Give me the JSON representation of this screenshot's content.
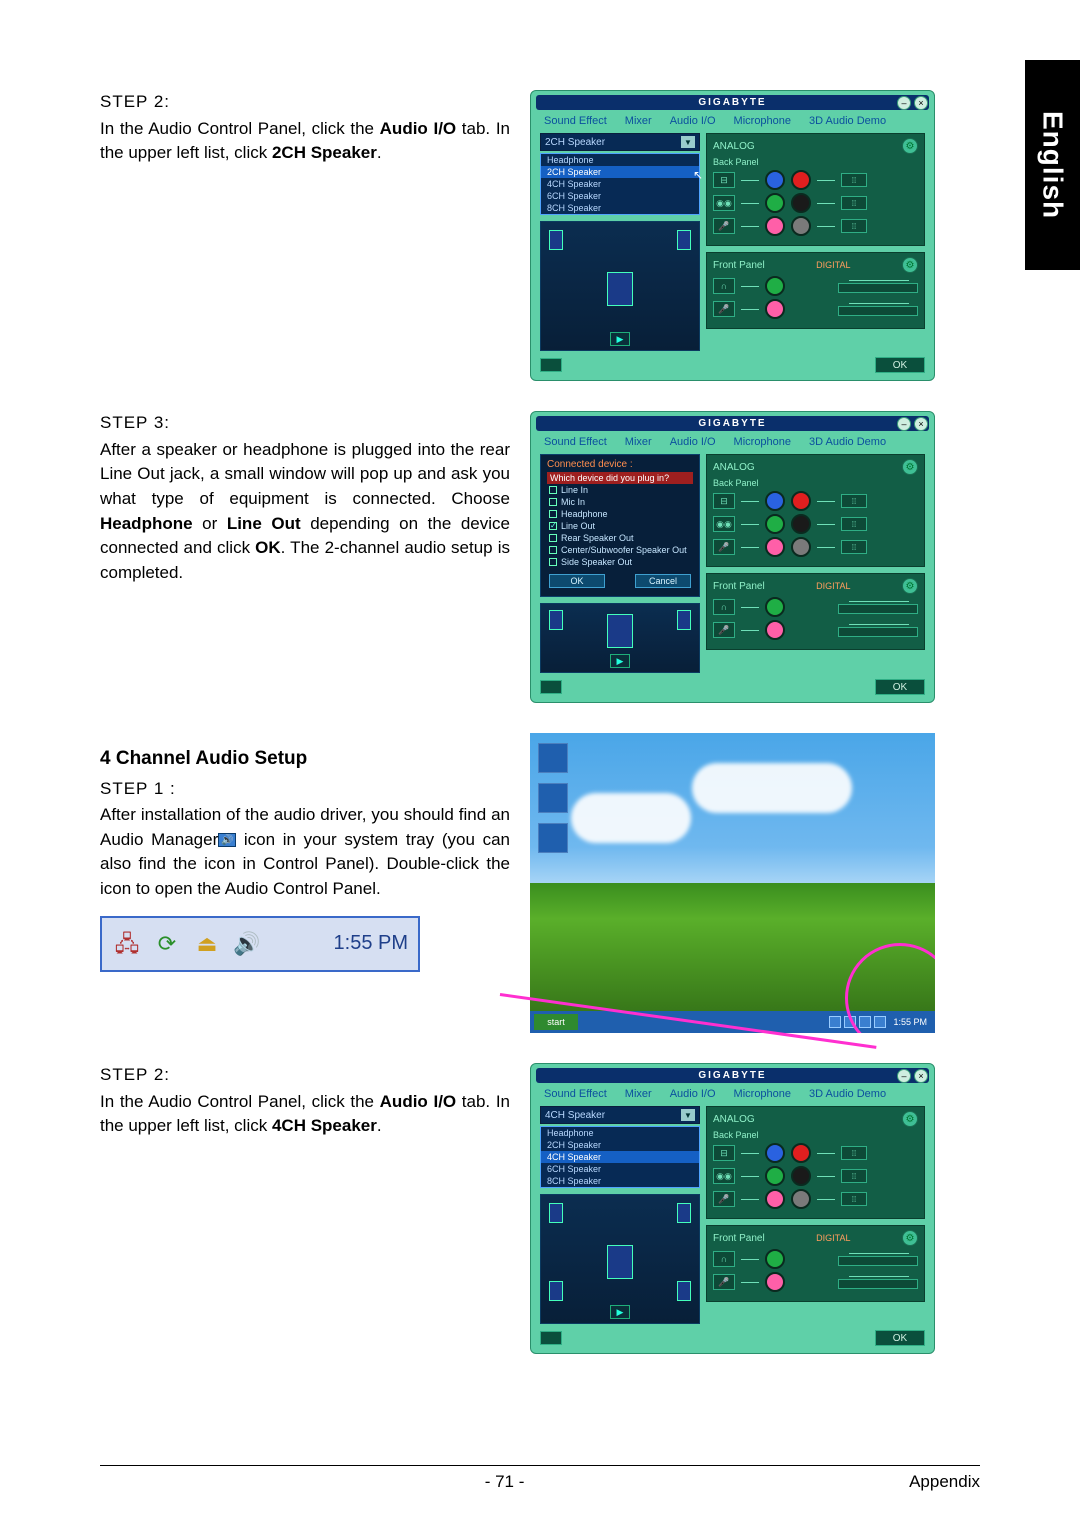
{
  "side_tab": "English",
  "sections": {
    "s2a": {
      "step": "STEP 2:",
      "body_a": "In the Audio Control Panel, click the ",
      "bold_a": "Audio I/O",
      "body_b": " tab. In the upper left list, click ",
      "bold_b": "2CH Speaker",
      "body_c": "."
    },
    "s3": {
      "step": "STEP 3:",
      "body_a": "After a speaker or headphone is plugged into the rear Line Out jack, a small window will pop up and ask you what type of equipment is connected. Choose ",
      "bold_a": "Headphone",
      "mid": " or ",
      "bold_b": "Line Out",
      "body_b": " depending on the device connected and click ",
      "bold_c": "OK",
      "body_c": ". The 2-channel audio setup is completed."
    },
    "s4": {
      "heading": "4 Channel Audio Setup",
      "step": "STEP 1 :",
      "body_a": "After installation of the audio driver, you should find an Audio Manager",
      "body_b": " icon in your system tray (you can also find the icon in Control Panel). Double-click the icon to open the Audio Control Panel."
    },
    "s2b": {
      "step": "STEP 2:",
      "body_a": "In the Audio Control Panel, click the ",
      "bold_a": "Audio I/O",
      "body_b": " tab. In the upper left list, click ",
      "bold_b": "4CH Speaker",
      "body_c": "."
    }
  },
  "panel": {
    "brand": "GIGABYTE",
    "tabs": [
      "Sound Effect",
      "Mixer",
      "Audio I/O",
      "Microphone",
      "3D Audio Demo"
    ],
    "dropdown2": {
      "selected": "2CH Speaker",
      "opts": [
        "Headphone",
        "2CH Speaker",
        "4CH Speaker",
        "6CH Speaker",
        "8CH Speaker"
      ]
    },
    "dropdown4": {
      "selected": "4CH Speaker",
      "opts": [
        "Headphone",
        "2CH Speaker",
        "4CH Speaker",
        "6CH Speaker",
        "8CH Speaker"
      ]
    },
    "analog": "ANALOG",
    "back": "Back Panel",
    "front": "Front Panel",
    "digital": "DIGITAL",
    "ok": "OK",
    "colors": {
      "bg": "#5fd0a8",
      "header": "#0a2f6b",
      "box": "#125e46",
      "jacks": [
        "#2a62e0",
        "#e01f1f",
        "#1fae45",
        "#1a1a1a",
        "#ff5fa8",
        "#7a7a7a"
      ]
    }
  },
  "dialog": {
    "header": "Connected device :",
    "question": "Which device did you plug in?",
    "opts": [
      "Line In",
      "Mic In",
      "Headphone",
      "Line Out",
      "Rear Speaker Out",
      "Center/Subwoofer Speaker Out",
      "Side Speaker Out"
    ],
    "checked": "Line Out",
    "ok": "OK",
    "cancel": "Cancel"
  },
  "systray": {
    "clock": "1:55 PM"
  },
  "desktop": {
    "start": "start",
    "clock": "1:55 PM"
  },
  "footer": {
    "page": "- 71 -",
    "section": "Appendix"
  }
}
